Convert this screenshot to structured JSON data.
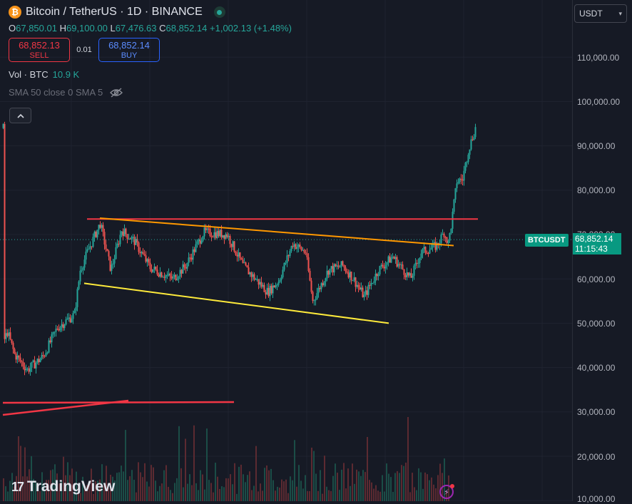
{
  "header": {
    "title": "Bitcoin / TetherUS · 1D · BINANCE",
    "icon": "bitcoin-icon",
    "ohlc": {
      "o_label": "O",
      "o": "67,850.01",
      "h_label": "H",
      "h": "69,100.00",
      "l_label": "L",
      "l": "67,476.63",
      "c_label": "C",
      "c": "68,852.14",
      "change": "+1,002.13 (+1.48%)"
    }
  },
  "trade": {
    "sell_price": "68,852.13",
    "sell_label": "SELL",
    "spread": "0.01",
    "buy_price": "68,852.14",
    "buy_label": "BUY"
  },
  "volume": {
    "label": "Vol · BTC",
    "value": "10.9 K"
  },
  "indicator": {
    "label": "SMA 50 close 0 SMA 5",
    "icon": "eye-hidden-icon"
  },
  "currency": {
    "value": "USDT"
  },
  "price_axis": [
    "110,000.00",
    "100,000.00",
    "90,000.00",
    "80,000.00",
    "70,000.00",
    "60,000.00",
    "50,000.00",
    "40,000.00",
    "30,000.00",
    "20,000.00",
    "10,000.00"
  ],
  "last_price": {
    "symbol": "BTCUSDT",
    "price": "68,852.14",
    "countdown": "11:15:43"
  },
  "branding": {
    "name": "TradingView"
  },
  "colors": {
    "up": "#26a69a",
    "down": "#ef5350",
    "resistance": "#f23645",
    "channel_top": "#ff9800",
    "channel_bottom": "#ffeb3b"
  },
  "chart_data": {
    "type": "candlestick",
    "interval": "1D",
    "y_axis_ticks": [
      110000,
      100000,
      90000,
      80000,
      70000,
      60000,
      50000,
      40000,
      30000,
      20000,
      10000
    ],
    "last_price": 68852.14,
    "trendlines": [
      {
        "color": "#f23645",
        "from": 73500,
        "to": 73500
      },
      {
        "color": "#ff9800",
        "from": 73700,
        "to": 67500
      },
      {
        "color": "#ffeb3b",
        "from": 59000,
        "to": 50000
      }
    ]
  }
}
